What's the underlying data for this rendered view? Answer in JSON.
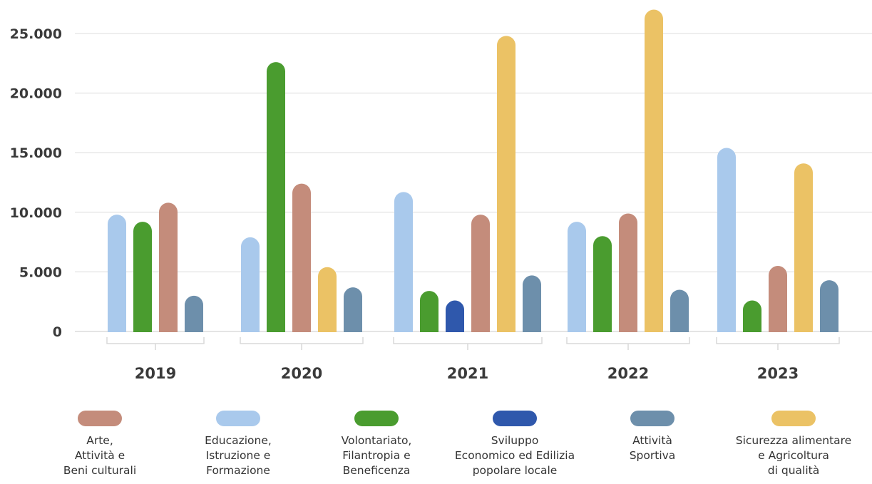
{
  "chart_data": {
    "type": "bar",
    "categories": [
      "2019",
      "2020",
      "2021",
      "2022",
      "2023"
    ],
    "ylim": [
      0,
      27000
    ],
    "yticks": [
      "0",
      "5.000",
      "10.000",
      "15.000",
      "20.000",
      "25.000"
    ],
    "grid": true,
    "legend_position": "bottom",
    "series": [
      {
        "name": "Educazione,\nIstruzione e\nFormazione",
        "color": "#a9c9ec",
        "values": [
          9800,
          7900,
          11700,
          9200,
          15400
        ]
      },
      {
        "name": "Volontariato,\nFilantropia e\nBeneficenza",
        "color": "#4a9c2f",
        "values": [
          9200,
          22600,
          3400,
          8000,
          2600
        ]
      },
      {
        "name": "Sviluppo\nEconomico ed Edilizia\npopolare locale",
        "color": "#2f58ac",
        "values": [
          null,
          null,
          2600,
          null,
          null
        ]
      },
      {
        "name": "Arte,\nAttività e\nBeni culturali",
        "color": "#c48c7b",
        "values": [
          10800,
          12400,
          9800,
          9900,
          5500
        ]
      },
      {
        "name": "Sicurezza alimentare\ne Agricoltura\ndi qualità",
        "color": "#ebc265",
        "values": [
          null,
          5400,
          24800,
          27000,
          14100
        ]
      },
      {
        "name": "Attività\nSportiva",
        "color": "#6d8fab",
        "values": [
          3000,
          3700,
          4700,
          3500,
          4300
        ]
      }
    ],
    "legend_order": [
      3,
      0,
      1,
      2,
      5,
      4
    ]
  }
}
